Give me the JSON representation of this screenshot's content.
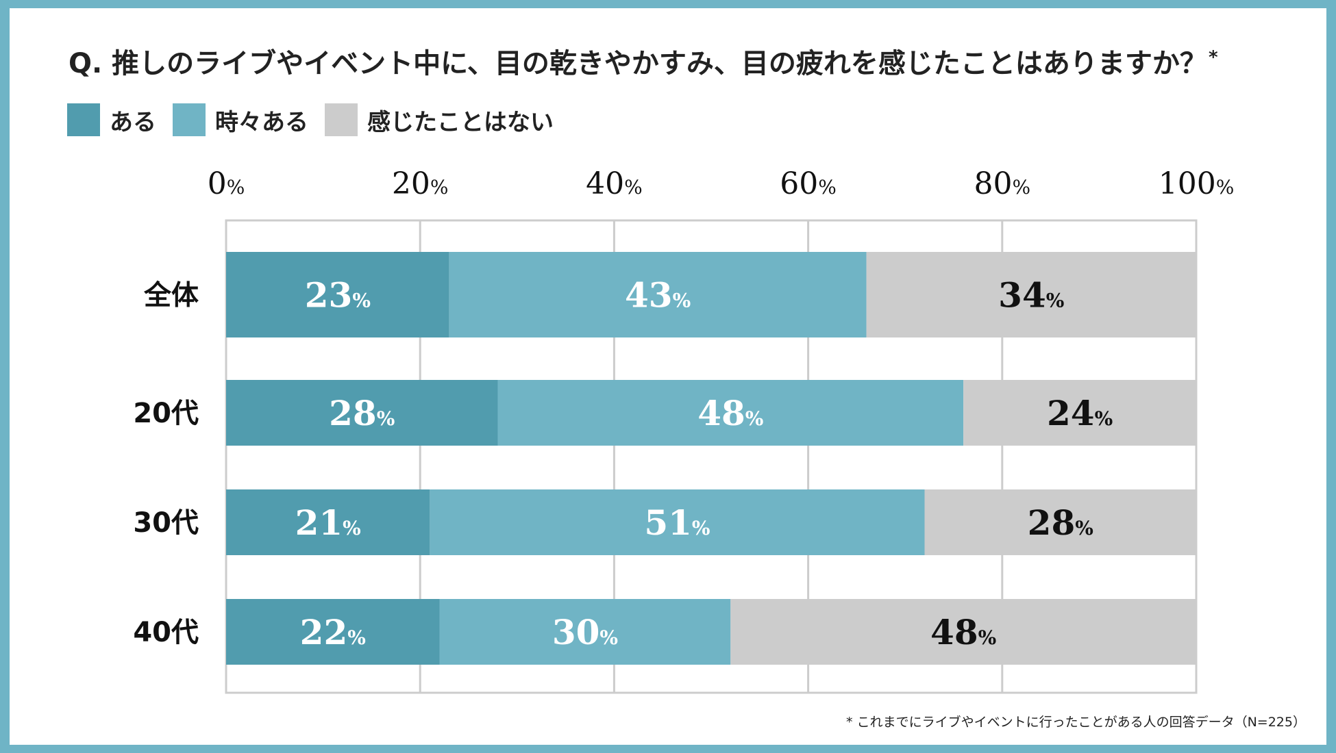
{
  "title": "Q. 推しのライブやイベント中に、目の乾きやかすみ、目の疲れを感じたことはありますか？",
  "title_mark": "*",
  "footnote": "* これまでにライブやイベントに行ったことがある人の回答データ（N=225）",
  "chart_data": {
    "type": "bar",
    "orientation": "horizontal",
    "stacked": true,
    "title": "Q. 推しのライブやイベント中に、目の乾きやかすみ、目の疲れを感じたことはありますか？",
    "categories": [
      "全体",
      "20代",
      "30代",
      "40代"
    ],
    "series": [
      {
        "name": "ある",
        "color": "#519cae",
        "label_color": "#ffffff",
        "values": [
          23,
          28,
          21,
          22
        ]
      },
      {
        "name": "時々ある",
        "color": "#70b4c5",
        "label_color": "#ffffff",
        "values": [
          43,
          48,
          51,
          30
        ]
      },
      {
        "name": "感じたことはない",
        "color": "#cccccc",
        "label_color": "#111111",
        "values": [
          34,
          24,
          28,
          48
        ]
      }
    ],
    "xlim": [
      0,
      100
    ],
    "ticks": [
      0,
      20,
      40,
      60,
      80,
      100
    ],
    "unit": "%",
    "grid": true,
    "legend": "top-left"
  }
}
